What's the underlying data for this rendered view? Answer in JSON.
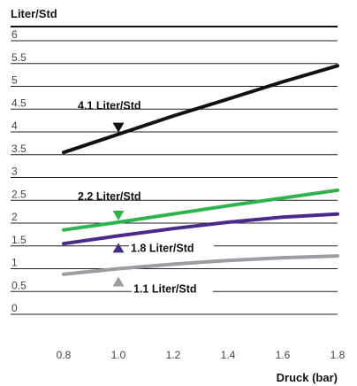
{
  "chart_data": {
    "type": "line",
    "title": "",
    "ylabel": "Liter/Std",
    "xlabel": "Druck (bar)",
    "ylim": [
      0,
      6.5
    ],
    "xlim": [
      0.8,
      1.8
    ],
    "ytick_labels": [
      "6",
      "5.5",
      "5",
      "4.5",
      "4",
      "3.5",
      "3",
      "2.5",
      "2",
      "1.5",
      "1",
      "0.5",
      "0"
    ],
    "xtick_labels": [
      "0.8",
      "1.0",
      "1.2",
      "1.4",
      "1.6",
      "1.8"
    ],
    "x": [
      0.8,
      1.0,
      1.2,
      1.4,
      1.6,
      1.8
    ],
    "series": [
      {
        "name": "4.1 Liter/Std",
        "color": "#111111",
        "values": [
          3.55,
          3.95,
          4.35,
          4.72,
          5.1,
          5.45
        ]
      },
      {
        "name": "2.2 Liter/Std",
        "color": "#2db34a",
        "values": [
          1.85,
          2.02,
          2.2,
          2.38,
          2.55,
          2.72
        ]
      },
      {
        "name": "1.8 Liter/Std",
        "color": "#4a2a8a",
        "values": [
          1.55,
          1.72,
          1.88,
          2.02,
          2.13,
          2.2
        ]
      },
      {
        "name": "1.1 Liter/Std",
        "color": "#9a9ea3",
        "values": [
          0.88,
          1.0,
          1.1,
          1.18,
          1.24,
          1.28
        ]
      }
    ],
    "annotations": [
      {
        "text": "4.1 Liter/Std",
        "series": 0,
        "marker": "down-triangle"
      },
      {
        "text": "2.2 Liter/Std",
        "series": 1,
        "marker": "down-triangle"
      },
      {
        "text": "1.8 Liter/Std",
        "series": 2,
        "marker": "up-triangle"
      },
      {
        "text": "1.1 Liter/Std",
        "series": 3,
        "marker": "up-triangle"
      }
    ],
    "grid": true,
    "legend": "inline-labels"
  }
}
